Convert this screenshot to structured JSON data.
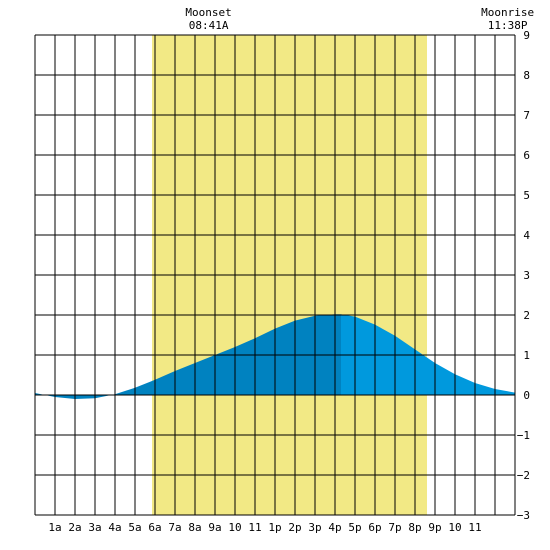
{
  "chart_data": {
    "type": "area",
    "x_ticks": [
      "1a",
      "2a",
      "3a",
      "4a",
      "5a",
      "6a",
      "7a",
      "8a",
      "9a",
      "10",
      "11",
      "1p",
      "2p",
      "3p",
      "4p",
      "5p",
      "6p",
      "7p",
      "8p",
      "9p",
      "10",
      "11"
    ],
    "y_ticks": [
      "9",
      "8",
      "7",
      "6",
      "5",
      "4",
      "3",
      "2",
      "1",
      "0",
      "−1",
      "−2",
      "−3"
    ],
    "xlim": [
      0,
      24
    ],
    "ylim": [
      -3,
      9
    ],
    "daylight": {
      "start": 5.85,
      "end": 19.6
    },
    "moon_events": [
      {
        "label": "Moonset",
        "time": "08:41A",
        "x": 8.68
      },
      {
        "label": "Moonrise",
        "time": "11:38P",
        "x": 23.63
      }
    ],
    "series": [
      {
        "x": [
          0,
          1,
          2,
          3,
          4,
          5,
          6,
          7,
          8,
          9,
          10,
          11,
          12,
          13,
          14,
          15,
          15.3,
          16,
          17,
          18,
          19,
          20,
          21,
          22,
          23,
          24
        ],
        "values": [
          0.05,
          -0.05,
          -0.1,
          -0.08,
          0.02,
          0.18,
          0.38,
          0.6,
          0.8,
          1.0,
          1.2,
          1.42,
          1.66,
          1.86,
          1.98,
          2.02,
          2.02,
          1.96,
          1.76,
          1.48,
          1.14,
          0.8,
          0.52,
          0.3,
          0.15,
          0.06
        ],
        "split_x": 15.3
      }
    ],
    "grid": true
  },
  "colors": {
    "background": "#ffffff",
    "grid": "#000000",
    "daylight": "#f2e985",
    "fill_rising": "#0082c0",
    "fill_falling": "#0099dd"
  }
}
